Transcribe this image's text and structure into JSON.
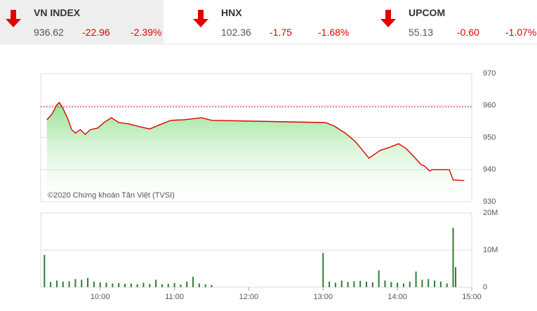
{
  "header": {
    "indices": [
      {
        "name": "VN INDEX",
        "value": "936.62",
        "change": "-22.96",
        "percent": "-2.39%"
      },
      {
        "name": "HNX",
        "value": "102.36",
        "change": "-1.75",
        "percent": "-1.68%"
      },
      {
        "name": "UPCOM",
        "value": "55.13",
        "change": "-0.60",
        "percent": "-1.07%"
      }
    ]
  },
  "chart_data": [
    {
      "type": "area",
      "annotation": "©2020 Chứng khoán Tân Việt (TVSI)",
      "x": [
        "09:17",
        "09:21",
        "09:25",
        "09:27",
        "09:30",
        "09:34",
        "09:37",
        "09:40",
        "09:44",
        "09:48",
        "09:52",
        "09:58",
        "10:03",
        "10:09",
        "10:15",
        "10:23",
        "10:32",
        "10:40",
        "10:48",
        "10:57",
        "11:08",
        "11:22",
        "11:30",
        "13:02",
        "13:09",
        "13:18",
        "13:26",
        "13:32",
        "13:37",
        "13:46",
        "13:54",
        "14:01",
        "14:07",
        "14:14",
        "14:19",
        "14:22",
        "14:26",
        "14:28",
        "14:42",
        "14:45",
        "14:54"
      ],
      "values": [
        955.6,
        957.3,
        960.2,
        961.0,
        959.1,
        955.8,
        952.5,
        951.4,
        952.5,
        951.0,
        952.5,
        953.0,
        954.7,
        956.2,
        954.7,
        954.3,
        953.4,
        952.7,
        954.0,
        955.4,
        955.6,
        956.2,
        955.4,
        954.7,
        953.6,
        951.4,
        948.8,
        946.0,
        943.6,
        946.0,
        947.0,
        948.1,
        946.6,
        943.8,
        941.6,
        941.1,
        939.6,
        940.0,
        940.0,
        936.8,
        936.62
      ],
      "color": "#e00000",
      "fill": "#8ee08a",
      "reference": 959.58,
      "reference_color": "#c62828",
      "xlim": [
        "09:12",
        "15:00"
      ],
      "ylim": [
        930,
        970
      ],
      "yticks": [
        930,
        940,
        950,
        960,
        970
      ],
      "grid": true
    },
    {
      "type": "bar",
      "x": [
        "09:15",
        "09:20",
        "09:25",
        "09:30",
        "09:35",
        "09:40",
        "09:45",
        "09:50",
        "09:55",
        "10:00",
        "10:05",
        "10:10",
        "10:15",
        "10:20",
        "10:25",
        "10:30",
        "10:35",
        "10:40",
        "10:45",
        "10:50",
        "10:55",
        "11:00",
        "11:05",
        "11:10",
        "11:15",
        "11:20",
        "11:25",
        "11:30",
        "13:00",
        "13:05",
        "13:10",
        "13:15",
        "13:20",
        "13:25",
        "13:30",
        "13:35",
        "13:40",
        "13:45",
        "13:50",
        "13:55",
        "14:00",
        "14:05",
        "14:10",
        "14:15",
        "14:20",
        "14:25",
        "14:30",
        "14:35",
        "14:40",
        "14:45",
        "14:47"
      ],
      "values": [
        8700000,
        1400000,
        1800000,
        1500000,
        1600000,
        2200000,
        2000000,
        2500000,
        1500000,
        1300000,
        1200000,
        1000000,
        1100000,
        900000,
        1000000,
        800000,
        1200000,
        900000,
        2000000,
        800000,
        900000,
        1100000,
        700000,
        1500000,
        2800000,
        1000000,
        800000,
        600000,
        9200000,
        1500000,
        1200000,
        1800000,
        1400000,
        1600000,
        1700000,
        1500000,
        1300000,
        4500000,
        1800000,
        1400000,
        1200000,
        1000000,
        1500000,
        4200000,
        2000000,
        2200000,
        1800000,
        1500000,
        1000000,
        16000000,
        5400000
      ],
      "color": "#2e7d32",
      "xlim": [
        "09:12",
        "15:00"
      ],
      "xticks": [
        "10:00",
        "11:00",
        "12:00",
        "13:00",
        "14:00",
        "15:00"
      ],
      "ylim": [
        0,
        20000000
      ],
      "yticks": [
        0,
        {
          "value": 10000000,
          "label": "10M"
        },
        {
          "value": 20000000,
          "label": "20M"
        }
      ],
      "grid": true
    }
  ]
}
